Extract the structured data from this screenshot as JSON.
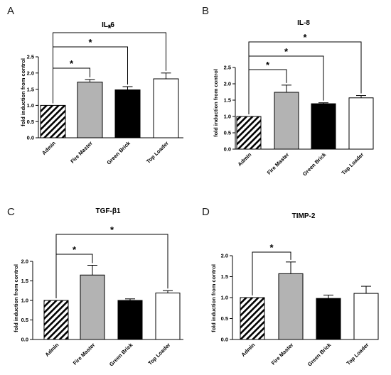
{
  "chart_data": [
    {
      "type": "bar",
      "panel": "A",
      "title": "IL-6",
      "ylabel": "fold induction from control",
      "xlabel": "",
      "categories": [
        "Admin",
        "Fire Master",
        "Green Brick",
        "Top Loader"
      ],
      "values": [
        1.0,
        1.72,
        1.48,
        1.82
      ],
      "errors": [
        0.0,
        0.08,
        0.1,
        0.18
      ],
      "fills": [
        "hatch",
        "#b3b3b3",
        "#000000",
        "#ffffff"
      ],
      "ylim": [
        0,
        2.5
      ],
      "yticks": [
        "0.0",
        "0.5",
        "1.0",
        "1.5",
        "2.0",
        "2.5"
      ],
      "significance": [
        {
          "from": 0,
          "to": 1,
          "label": "*"
        },
        {
          "from": 0,
          "to": 2,
          "label": "*"
        },
        {
          "from": 0,
          "to": 3,
          "label": "*"
        }
      ]
    },
    {
      "type": "bar",
      "panel": "B",
      "title": "IL-8",
      "ylabel": "fold induction from control",
      "xlabel": "",
      "categories": [
        "Admin",
        "Fire Master",
        "Green Brick",
        "Top Loader"
      ],
      "values": [
        1.0,
        1.74,
        1.39,
        1.57
      ],
      "errors": [
        0.0,
        0.22,
        0.03,
        0.07
      ],
      "fills": [
        "hatch",
        "#b3b3b3",
        "#000000",
        "#ffffff"
      ],
      "ylim": [
        0,
        2.5
      ],
      "yticks": [
        "0.0",
        "0.5",
        "1.0",
        "1.5",
        "2.0",
        "2.5"
      ],
      "significance": [
        {
          "from": 0,
          "to": 1,
          "label": "*"
        },
        {
          "from": 0,
          "to": 2,
          "label": "*"
        },
        {
          "from": 0,
          "to": 3,
          "label": "*"
        }
      ]
    },
    {
      "type": "bar",
      "panel": "C",
      "title": "TGF-β1",
      "ylabel": "fold induction from control",
      "xlabel": "",
      "categories": [
        "Admin",
        "Fire Master",
        "Green Brick",
        "Top Loader"
      ],
      "values": [
        1.0,
        1.65,
        1.0,
        1.19
      ],
      "errors": [
        0.0,
        0.25,
        0.04,
        0.06
      ],
      "fills": [
        "hatch",
        "#b3b3b3",
        "#000000",
        "#ffffff"
      ],
      "ylim": [
        0,
        2.0
      ],
      "yticks": [
        "0.0",
        "0.5",
        "1.0",
        "1.5",
        "2.0"
      ],
      "significance": [
        {
          "from": 0,
          "to": 1,
          "label": "*"
        },
        {
          "from": 0,
          "to": 3,
          "label": "*"
        }
      ]
    },
    {
      "type": "bar",
      "panel": "D",
      "title": "TIMP-2",
      "ylabel": "fold induction from control",
      "xlabel": "",
      "categories": [
        "Admin",
        "Fire Master",
        "Green Brick",
        "Top Loader"
      ],
      "values": [
        1.0,
        1.57,
        0.98,
        1.1
      ],
      "errors": [
        0.0,
        0.28,
        0.08,
        0.17
      ],
      "fills": [
        "hatch",
        "#b3b3b3",
        "#000000",
        "#ffffff"
      ],
      "ylim": [
        0,
        2.0
      ],
      "yticks": [
        "0.0",
        "0.5",
        "1.0",
        "1.5",
        "2.0"
      ],
      "significance": [
        {
          "from": 0,
          "to": 1,
          "label": "*"
        }
      ]
    }
  ]
}
